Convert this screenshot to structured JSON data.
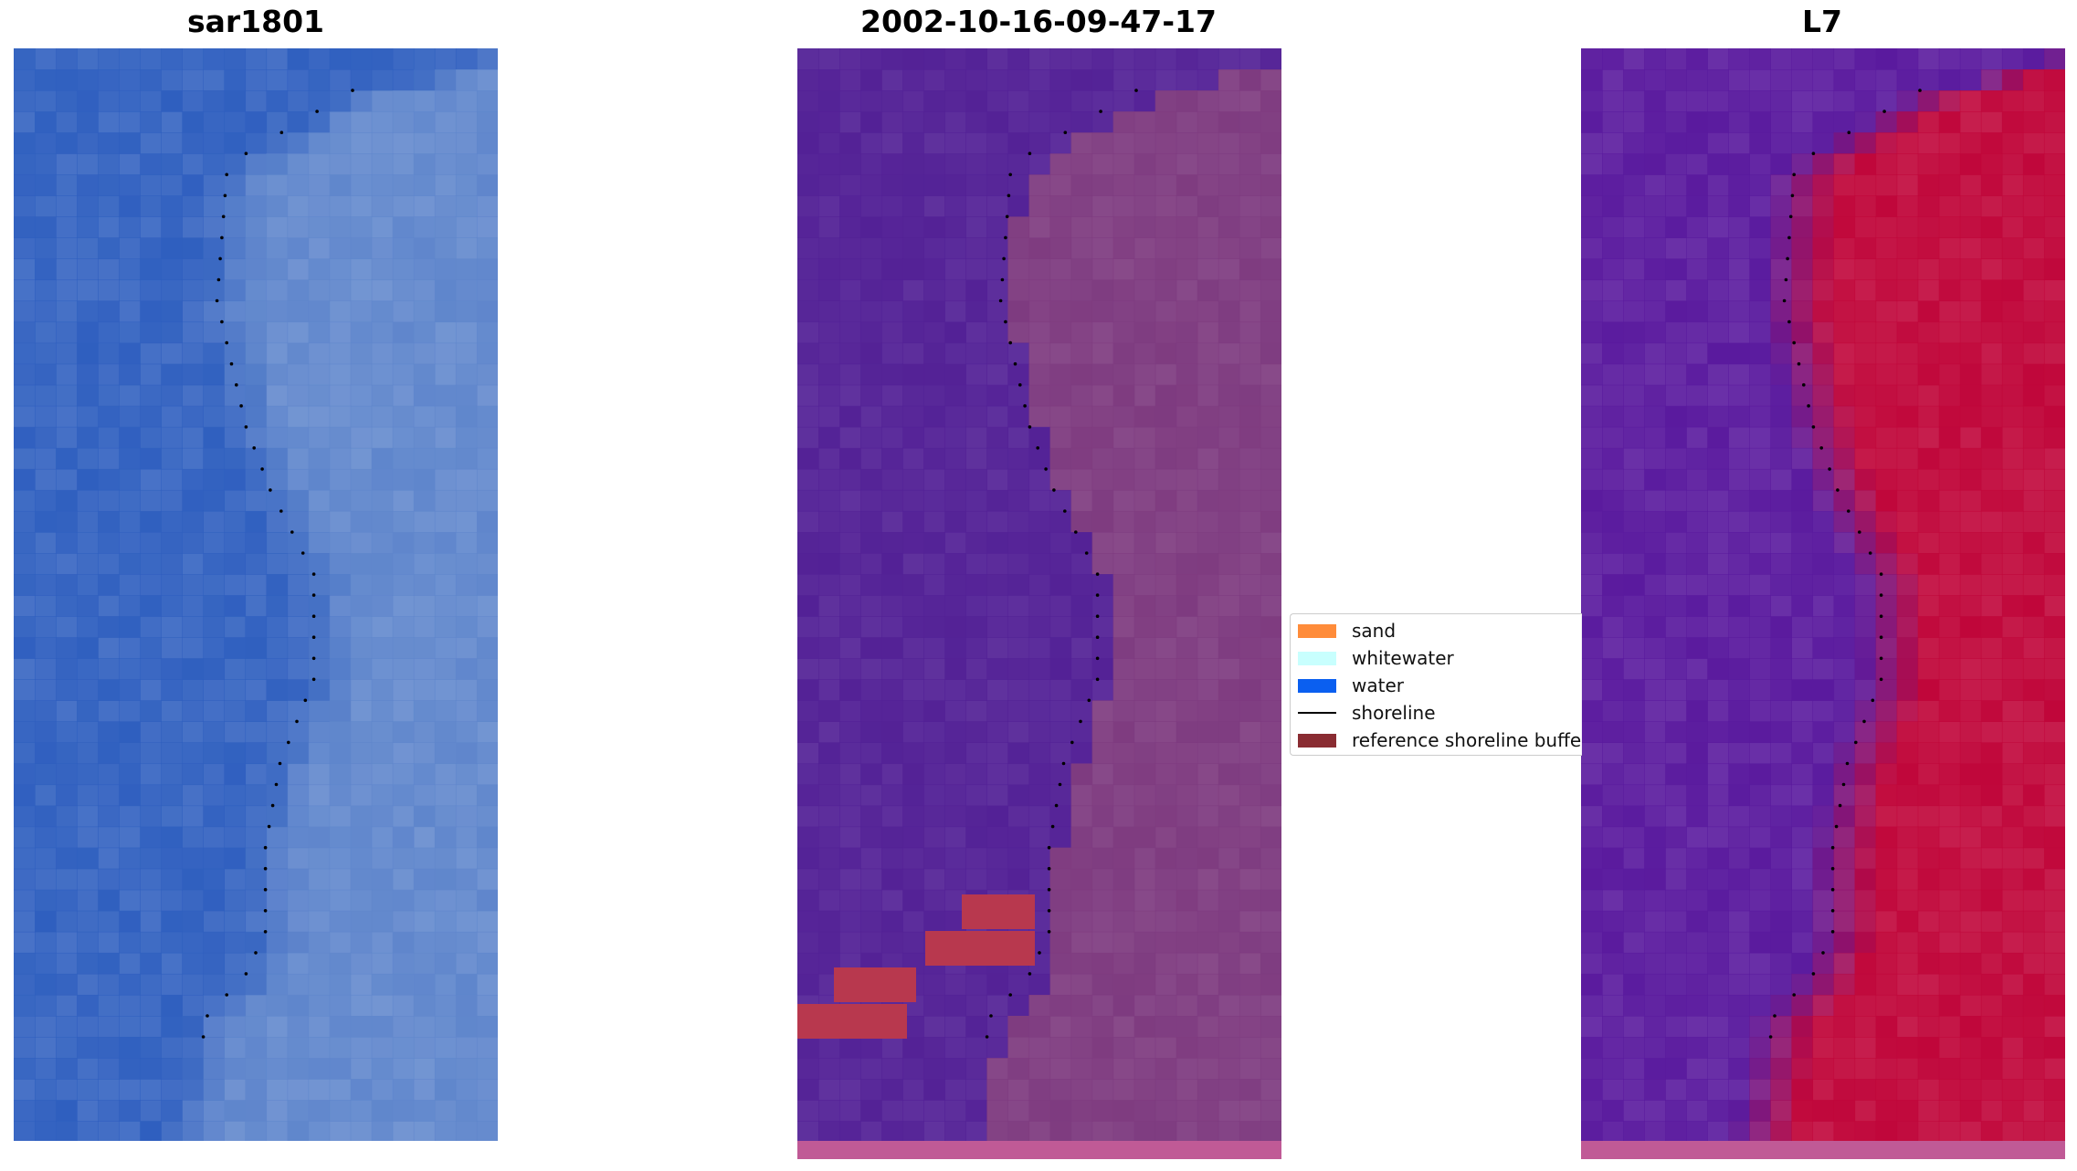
{
  "panels": [
    {
      "title": "sar1801"
    },
    {
      "title": "2002-10-16-09-47-17"
    },
    {
      "title": "L7"
    }
  ],
  "legend": {
    "items": [
      {
        "label": "sand",
        "color": "#ff8c3a",
        "kind": "swatch"
      },
      {
        "label": "whitewater",
        "color": "#c8fffe",
        "kind": "swatch"
      },
      {
        "label": "water",
        "color": "#0a5ff0",
        "kind": "swatch"
      },
      {
        "label": "shoreline",
        "color": "#000000",
        "kind": "line"
      },
      {
        "label": "reference shoreline buffer",
        "color": "#8a2c32",
        "kind": "swatch"
      }
    ]
  },
  "colors": {
    "rgb_water": "#2f5fbf",
    "rgb_land": "#5f86cc",
    "class_water": "#532196",
    "class_land": "#7e3b80",
    "class_buffer": "#b8384e",
    "class_strip": "#c05a96",
    "nir_water": "#5a1a9e",
    "nir_land": "#c0063a",
    "shoreline": "#000000"
  }
}
